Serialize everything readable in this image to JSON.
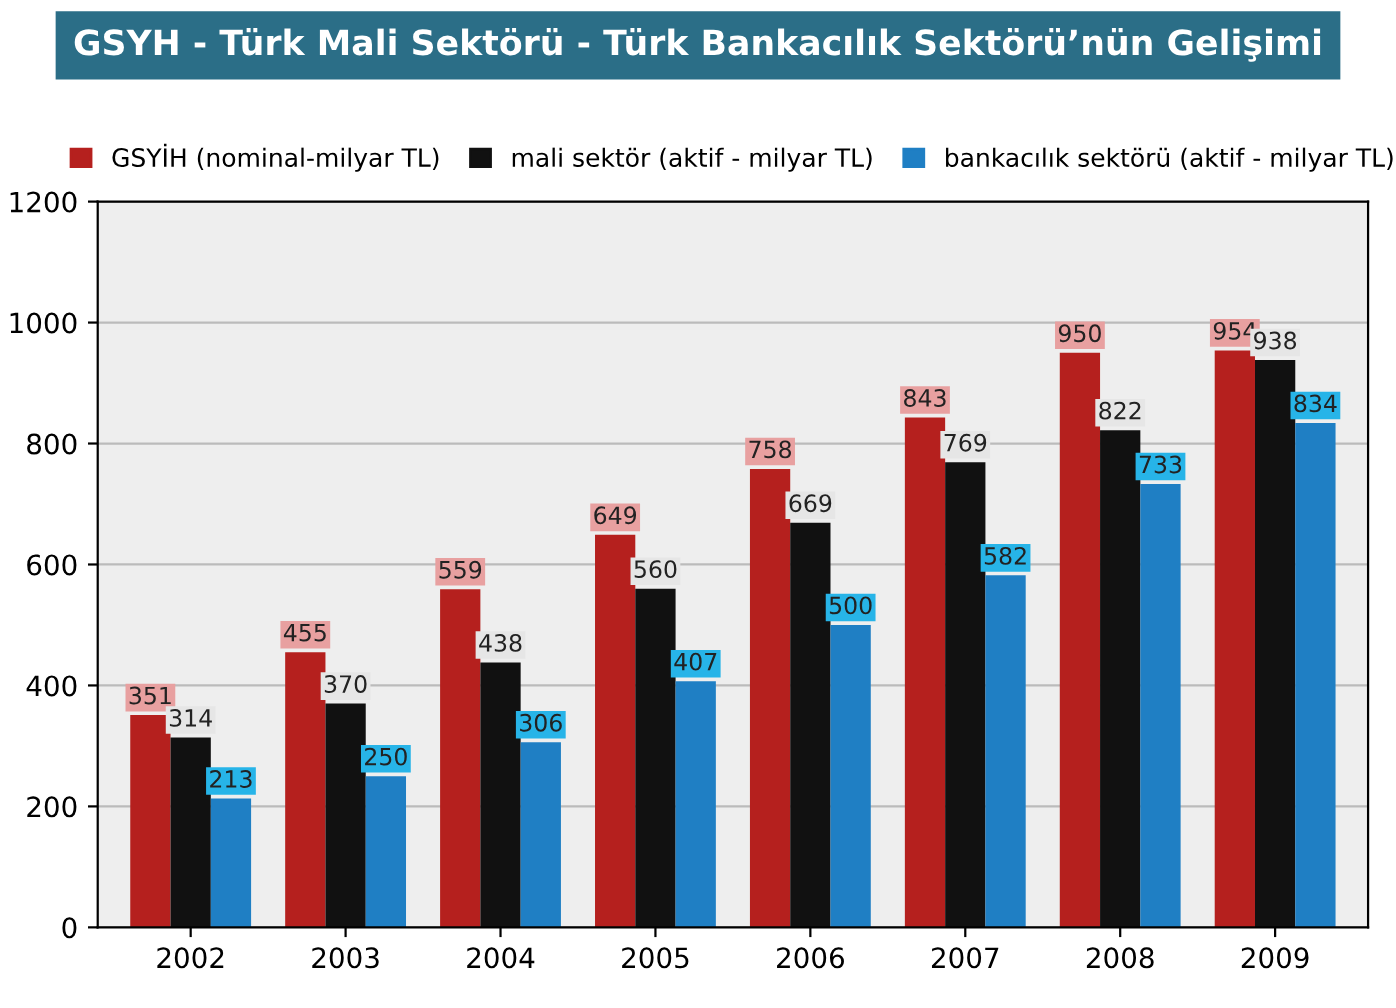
{
  "chart_data": {
    "type": "bar",
    "title": "GSYH - Türk Mali Sektörü - Türk Bankacılık Sektörü’nün Gelişimi",
    "categories": [
      "2002",
      "2003",
      "2004",
      "2005",
      "2006",
      "2007",
      "2008",
      "2009"
    ],
    "series": [
      {
        "name": "GSYİH (nominal-milyar TL)",
        "color": "#b5201e",
        "values": [
          351,
          455,
          559,
          649,
          758,
          843,
          950,
          954
        ]
      },
      {
        "name": "mali sektör (aktif - milyar TL)",
        "color": "#111111",
        "values": [
          314,
          370,
          438,
          560,
          669,
          769,
          822,
          938
        ]
      },
      {
        "name": "bankacılık sektörü (aktif - milyar TL)",
        "color": "#1f7fc4",
        "values": [
          213,
          250,
          306,
          407,
          500,
          582,
          733,
          834
        ]
      }
    ],
    "ylim": [
      0,
      1200
    ],
    "yticks": [
      0,
      200,
      400,
      600,
      800,
      1000,
      1200
    ],
    "grid": "y",
    "legend": "top",
    "data_labels": true
  }
}
